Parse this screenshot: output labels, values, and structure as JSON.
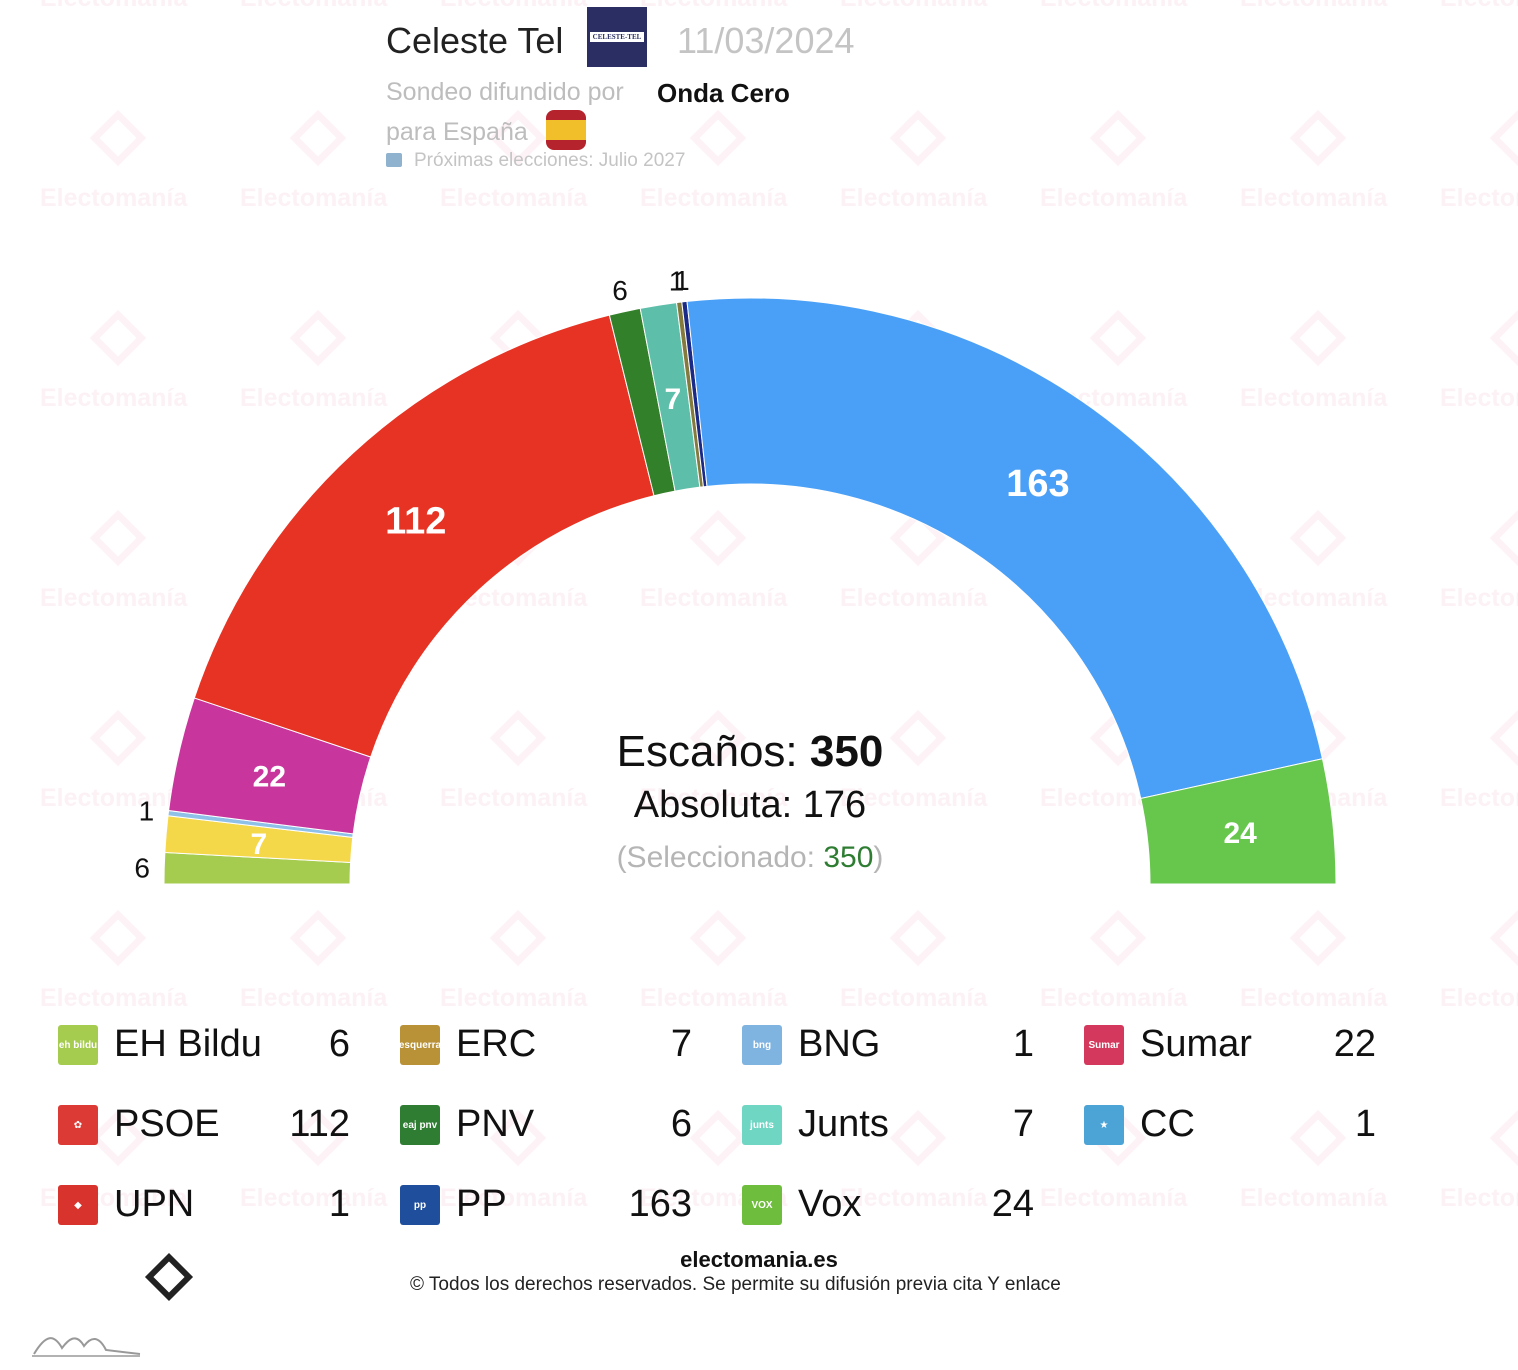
{
  "header": {
    "pollster": "Celeste Tel",
    "pollster_logo_text": "CELESTE-TEL",
    "date": "11/03/2024",
    "spread_label": "Sondeo difundido por",
    "media": "Onda Cero",
    "region": "para España",
    "next_elections": "Próximas elecciones: Julio 2027"
  },
  "summary": {
    "seats_label": "Escaños:",
    "seats_total": "350",
    "absolute_text": "Absoluta: 176",
    "selected_prefix": "(Seleccionado: ",
    "selected_value": "350",
    "selected_suffix": ")"
  },
  "chart_data": {
    "type": "parliament-semicircle",
    "total_seats": 350,
    "majority": 176,
    "parties": [
      {
        "name": "EH Bildu",
        "seats": 6,
        "color": "#a5cc4f"
      },
      {
        "name": "ERC",
        "seats": 7,
        "color": "#f5d74a"
      },
      {
        "name": "BNG",
        "seats": 1,
        "color": "#8fc0e8"
      },
      {
        "name": "Sumar",
        "seats": 22,
        "color": "#c8369d"
      },
      {
        "name": "PSOE",
        "seats": 112,
        "color": "#e63323"
      },
      {
        "name": "PNV",
        "seats": 6,
        "color": "#33802a"
      },
      {
        "name": "Junts",
        "seats": 7,
        "color": "#5dbfa9"
      },
      {
        "name": "UPN",
        "seats": 1,
        "color": "#857a3e"
      },
      {
        "name": "CC",
        "seats": 1,
        "color": "#1a2a86"
      },
      {
        "name": "PP",
        "seats": 163,
        "color": "#4aa0f7"
      },
      {
        "name": "Vox",
        "seats": 24,
        "color": "#66c74c"
      }
    ]
  },
  "legend": [
    {
      "name": "EH Bildu",
      "value": "6",
      "color": "#a5cc4f",
      "icon": "eh-bildu-icon",
      "glyph": "eh bildu"
    },
    {
      "name": "ERC",
      "value": "7",
      "color": "#b99238",
      "icon": "erc-icon",
      "glyph": "esquerra"
    },
    {
      "name": "BNG",
      "value": "1",
      "color": "#7fb3e0",
      "icon": "bng-icon",
      "glyph": "bng"
    },
    {
      "name": "Sumar",
      "value": "22",
      "color": "#d4385c",
      "icon": "sumar-icon",
      "glyph": "Sumar"
    },
    {
      "name": "PSOE",
      "value": "112",
      "color": "#dc3a35",
      "icon": "psoe-icon",
      "glyph": "✿"
    },
    {
      "name": "PNV",
      "value": "6",
      "color": "#2f7d32",
      "icon": "pnv-icon",
      "glyph": "eaj pnv"
    },
    {
      "name": "Junts",
      "value": "7",
      "color": "#70d6c4",
      "icon": "junts-icon",
      "glyph": "junts"
    },
    {
      "name": "CC",
      "value": "1",
      "color": "#4ba3d6",
      "icon": "cc-icon",
      "glyph": "★"
    },
    {
      "name": "UPN",
      "value": "1",
      "color": "#d8332c",
      "icon": "upn-icon",
      "glyph": "◆"
    },
    {
      "name": "PP",
      "value": "163",
      "color": "#1f4e9c",
      "icon": "pp-icon",
      "glyph": "pp"
    },
    {
      "name": "Vox",
      "value": "24",
      "color": "#6ebd3c",
      "icon": "vox-icon",
      "glyph": "VOX"
    }
  ],
  "footer": {
    "site": "electomania.es",
    "copyright": "© Todos los derechos reservados. Se permite su difusión previa cita Y enlace"
  },
  "watermark": "Electomanía"
}
